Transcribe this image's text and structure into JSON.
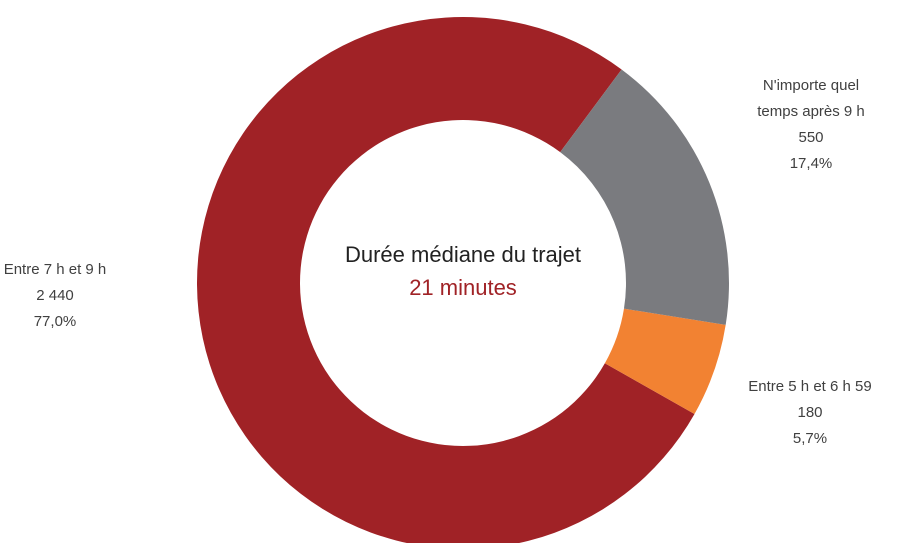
{
  "chart_data": {
    "type": "donut",
    "categories": [
      "N'importe quel temps après 9 h",
      "Entre 5 h et 6 h 59",
      "Entre 7 h et 9 h"
    ],
    "category_lines": [
      [
        "N'importe quel",
        "temps après 9 h"
      ],
      [
        "Entre 5 h et 6 h 59"
      ],
      [
        "Entre 7 h et 9 h"
      ]
    ],
    "values": [
      550,
      180,
      2440
    ],
    "value_labels": [
      "550",
      "180",
      "2 440"
    ],
    "percentages": [
      17.4,
      5.7,
      77.0
    ],
    "percentage_labels": [
      "17,4%",
      "5,7%",
      "77,0%"
    ],
    "colors": [
      "#7a7b7f",
      "#f28232",
      "#a02226"
    ],
    "center_title": "Durée médiane du trajet",
    "center_value": "21 minutes"
  }
}
